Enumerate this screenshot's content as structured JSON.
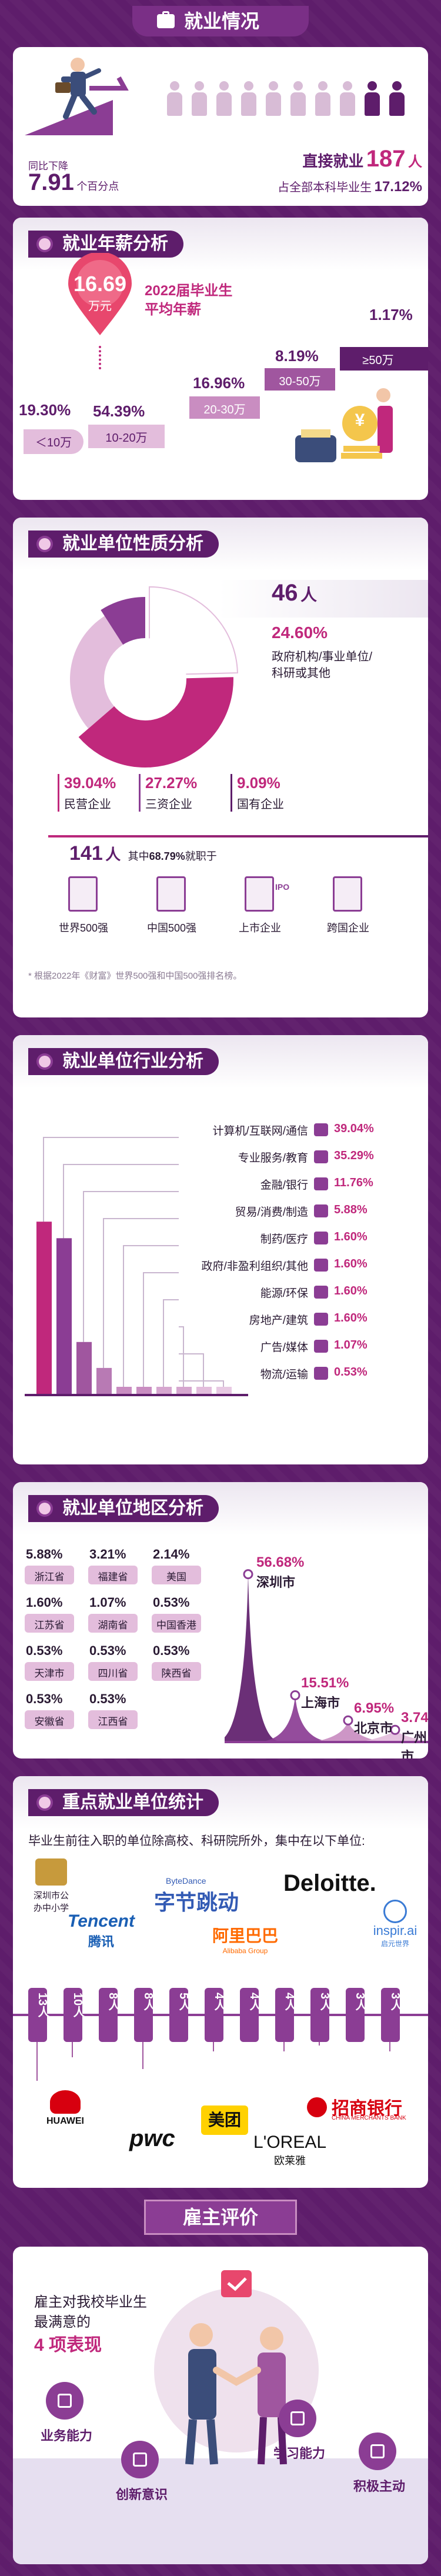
{
  "header": {
    "title": "就业情况"
  },
  "employment": {
    "yoy_label": "同比下降",
    "yoy_value": "7.91",
    "yoy_unit": "个百分点",
    "direct_label": "直接就业",
    "direct_value": "187",
    "direct_unit": "人",
    "share_label": "占全部本科毕业生",
    "share_value": "17.12%"
  },
  "salary": {
    "title": "就业年薪分析",
    "avg_value": "16.69",
    "avg_unit": "万元",
    "avg_label_line1": "2022届毕业生",
    "avg_label_line2": "平均年薪",
    "steps": [
      {
        "pct": "19.30%",
        "label": "＜10万"
      },
      {
        "pct": "54.39%",
        "label": "10-20万"
      },
      {
        "pct": "16.96%",
        "label": "20-30万"
      },
      {
        "pct": "8.19%",
        "label": "30-50万"
      },
      {
        "pct": "1.17%",
        "label": "≥50万"
      }
    ],
    "money_symbol": "¥"
  },
  "nature": {
    "title": "就业单位性质分析",
    "gov_count": "46",
    "gov_unit": "人",
    "gov_pct": "24.60%",
    "gov_label_1": "政府机构/事业单位/",
    "gov_label_2": "科研或其他",
    "slices": [
      {
        "pct": "39.04%",
        "label": "民营企业"
      },
      {
        "pct": "27.27%",
        "label": "三资企业"
      },
      {
        "pct": "9.09%",
        "label": "国有企业"
      }
    ],
    "top_count": "141",
    "top_unit": "人",
    "top_text_1": "其中",
    "top_pct": "68.79%",
    "top_text_2": "就职于",
    "types": [
      "世界500强",
      "中国500强",
      "上市企业",
      "跨国企业"
    ],
    "ipo_text": "IPO",
    "note": "* 根据2022年《财富》世界500强和中国500强排名榜。"
  },
  "industry": {
    "title": "就业单位行业分析",
    "rows": [
      {
        "label": "计算机/互联网/通信",
        "pct": "39.04%",
        "icon": "computer-icon"
      },
      {
        "label": "专业服务/教育",
        "pct": "35.29%",
        "icon": "book-icon"
      },
      {
        "label": "金融/银行",
        "pct": "11.76%",
        "icon": "bank-icon"
      },
      {
        "label": "贸易/消费/制造",
        "pct": "5.88%",
        "icon": "gear-icon"
      },
      {
        "label": "制药/医疗",
        "pct": "1.60%",
        "icon": "medical-icon"
      },
      {
        "label": "政府/非盈利组织/其他",
        "pct": "1.60%",
        "icon": "government-icon"
      },
      {
        "label": "能源/环保",
        "pct": "1.60%",
        "icon": "leaf-icon"
      },
      {
        "label": "房地产/建筑",
        "pct": "1.60%",
        "icon": "building-icon"
      },
      {
        "label": "广告/媒体",
        "pct": "1.07%",
        "icon": "megaphone-icon"
      },
      {
        "label": "物流/运输",
        "pct": "0.53%",
        "icon": "truck-icon"
      }
    ],
    "bar_values": [
      39.04,
      35.29,
      11.76,
      5.88,
      1.6,
      1.6,
      1.6,
      1.6,
      1.07,
      0.53
    ]
  },
  "region": {
    "title": "就业单位地区分析",
    "grid": [
      {
        "pct": "5.88%",
        "label": "浙江省"
      },
      {
        "pct": "3.21%",
        "label": "福建省"
      },
      {
        "pct": "2.14%",
        "label": "美国"
      },
      {
        "pct": "1.60%",
        "label": "江苏省"
      },
      {
        "pct": "1.07%",
        "label": "湖南省"
      },
      {
        "pct": "0.53%",
        "label": "中国香港"
      },
      {
        "pct": "0.53%",
        "label": "天津市"
      },
      {
        "pct": "0.53%",
        "label": "四川省"
      },
      {
        "pct": "0.53%",
        "label": "陕西省"
      },
      {
        "pct": "0.53%",
        "label": "安徽省"
      },
      {
        "pct": "0.53%",
        "label": "江西省"
      }
    ],
    "peaks": [
      {
        "pct": "56.68%",
        "label": "深圳市",
        "value": 56.68
      },
      {
        "pct": "15.51%",
        "label": "上海市",
        "value": 15.51
      },
      {
        "pct": "6.95%",
        "label": "北京市",
        "value": 6.95
      },
      {
        "pct": "3.74%",
        "label": "广州市",
        "value": 3.74
      }
    ]
  },
  "employers": {
    "title": "重点就业单位统计",
    "intro": "毕业生前往入职的单位除高校、科研院所外，集中在以下单位:",
    "counts": [
      "13人",
      "10人",
      "8人",
      "8人",
      "5人",
      "4人",
      "4人",
      "4人",
      "3人",
      "3人",
      "3人"
    ],
    "logos": {
      "school_1": "深圳市公",
      "school_2": "办中小学",
      "tencent_en": "Tencent",
      "tencent_cn": "腾讯",
      "bytedance_en": "ByteDance",
      "bytedance_cn": "字节跳动",
      "alibaba_cn": "阿里巴巴",
      "alibaba_en": "Alibaba Group",
      "deloitte": "Deloitte.",
      "inspir": "inspir.ai",
      "inspir_cn": "启元世界",
      "huawei": "HUAWEI",
      "pwc": "pwc",
      "meituan": "美团",
      "loreal": "L'OREAL",
      "loreal_cn": "欧莱雅",
      "cmb": "招商银行",
      "cmb_en": "CHINA MERCHANTS BANK"
    }
  },
  "employer_eval": {
    "title": "雇主评价",
    "line1": "雇主对我校毕业生",
    "line2": "最满意的",
    "highlight": "4 项表现",
    "traits": [
      "业务能力",
      "创新意识",
      "学习能力",
      "积极主动"
    ]
  }
}
